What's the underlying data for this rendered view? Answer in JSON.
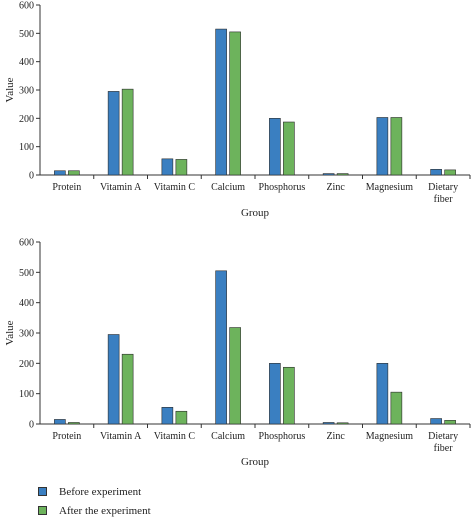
{
  "chart_data": [
    {
      "type": "bar",
      "categories": [
        "Protein",
        "Vitamin A",
        "Vitamin C",
        "Calcium",
        "Phosphorus",
        "Zinc",
        "Magnesium",
        "Dietary fiber"
      ],
      "series": [
        {
          "name": "Before experiment",
          "values": [
            15,
            295,
            57,
            515,
            200,
            5,
            203,
            20
          ]
        },
        {
          "name": "After the experiment",
          "values": [
            15,
            303,
            55,
            505,
            187,
            5,
            203,
            18
          ]
        }
      ],
      "xlabel": "Group",
      "ylabel": "Value",
      "ylim": [
        0,
        600
      ],
      "yticks": [
        0,
        100,
        200,
        300,
        400,
        500,
        600
      ],
      "grid": false
    },
    {
      "type": "bar",
      "categories": [
        "Protein",
        "Vitamin A",
        "Vitamin C",
        "Calcium",
        "Phosphorus",
        "Zinc",
        "Magnesium",
        "Dietary fiber"
      ],
      "series": [
        {
          "name": "Before experiment",
          "values": [
            15,
            295,
            55,
            505,
            200,
            5,
            200,
            18
          ]
        },
        {
          "name": "After the experiment",
          "values": [
            5,
            230,
            42,
            318,
            187,
            4,
            105,
            12
          ]
        }
      ],
      "xlabel": "Group",
      "ylabel": "Value",
      "ylim": [
        0,
        600
      ],
      "yticks": [
        0,
        100,
        200,
        300,
        400,
        500,
        600
      ],
      "grid": false
    }
  ],
  "legend": {
    "placement": "bottom-left",
    "items": [
      {
        "label": "Before experiment",
        "color": "#3a7fc1"
      },
      {
        "label": "After the experiment",
        "color": "#6db35c"
      }
    ]
  },
  "colors": {
    "before": "#3a7fc1",
    "after": "#6db35c",
    "axis": "#333333"
  }
}
